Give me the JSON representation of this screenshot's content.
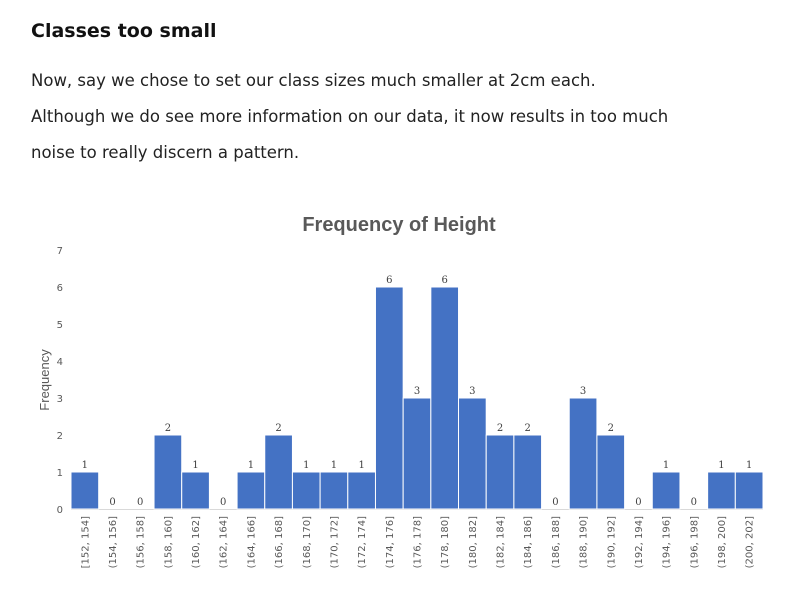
{
  "article": {
    "heading": "Classes too small",
    "lines": [
      "Now, say we chose to set our class sizes much smaller at 2cm each.",
      "Although we do see more information on our data, it now results in too much",
      "noise to really discern a pattern."
    ]
  },
  "chart_data": {
    "type": "bar",
    "title": "Frequency of Height",
    "xlabel": "",
    "ylabel": "Frequency",
    "ylim": [
      0,
      7
    ],
    "yticks": [
      0,
      1,
      2,
      3,
      4,
      5,
      6,
      7
    ],
    "grid": false,
    "legend": "none",
    "bar_color": "#4472c4",
    "categories": [
      "[152, 154]",
      "(154, 156]",
      "(156, 158]",
      "(158, 160]",
      "(160, 162]",
      "(162, 164]",
      "(164, 166]",
      "(166, 168]",
      "(168, 170]",
      "(170, 172]",
      "(172, 174]",
      "(174, 176]",
      "(176, 178]",
      "(178, 180]",
      "(180, 182]",
      "(182, 184]",
      "(184, 186]",
      "(186, 188]",
      "(188, 190]",
      "(190, 192]",
      "(192, 194]",
      "(194, 196]",
      "(196, 198]",
      "(198, 200]",
      "(200, 202]"
    ],
    "values": [
      1,
      0,
      0,
      2,
      1,
      0,
      1,
      2,
      1,
      1,
      1,
      6,
      3,
      6,
      3,
      2,
      2,
      0,
      3,
      2,
      0,
      1,
      0,
      1,
      1
    ]
  }
}
